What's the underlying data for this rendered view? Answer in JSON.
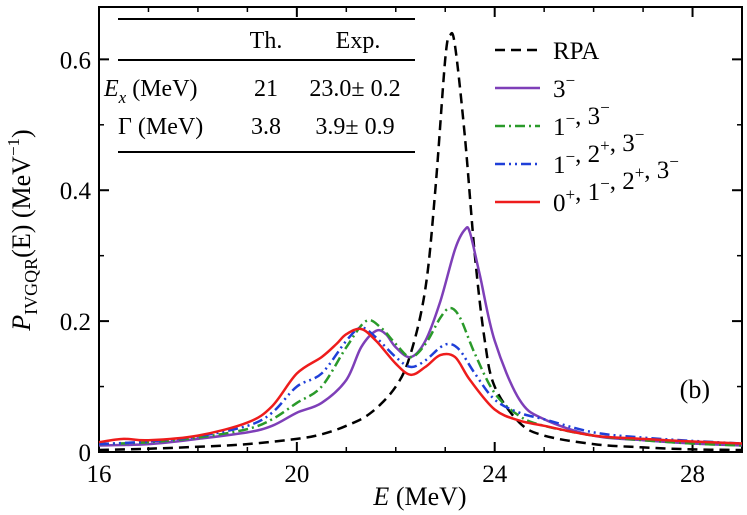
{
  "chart_data": {
    "type": "line",
    "panel_label": "(b)",
    "xlabel": {
      "italic": "E",
      "rest": " (MeV)"
    },
    "ylabel": {
      "italic": "P",
      "sub": "IVGQR",
      "mid": "(E) (MeV",
      "sup": "−1",
      "end": ")"
    },
    "xlim": [
      16,
      29
    ],
    "ylim": [
      0,
      0.68
    ],
    "xticks": [
      16,
      20,
      24,
      28
    ],
    "xtick_labels": [
      "16",
      "20",
      "24",
      "28"
    ],
    "yticks": [
      0,
      0.2,
      0.4,
      0.6
    ],
    "ytick_labels": [
      "0",
      "0.2",
      "0.4",
      "0.6"
    ],
    "legend_position": "top-right",
    "table": {
      "headers": [
        "Th.",
        "Exp."
      ],
      "rows": [
        {
          "symbol": "E",
          "sub": "x",
          "unit": " (MeV)",
          "th": "21",
          "exp": "23.0± 0.2"
        },
        {
          "symbol": "Γ",
          "sub": "",
          "unit": " (MeV)",
          "th": "3.8",
          "exp": "3.9± 0.9"
        }
      ]
    },
    "series": [
      {
        "name": "RPA",
        "legend": [
          {
            "t": "RPA"
          }
        ],
        "color": "#000000",
        "dash": "10 6",
        "x": [
          16,
          17,
          18,
          19,
          20,
          20.5,
          21,
          21.5,
          22,
          22.3,
          22.6,
          22.8,
          23.0,
          23.1,
          23.2,
          23.4,
          23.6,
          23.8,
          24,
          24.5,
          25,
          26,
          27,
          28,
          29
        ],
        "y": [
          0.003,
          0.005,
          0.008,
          0.012,
          0.02,
          0.027,
          0.04,
          0.06,
          0.1,
          0.15,
          0.25,
          0.4,
          0.6,
          0.637,
          0.62,
          0.48,
          0.3,
          0.17,
          0.1,
          0.045,
          0.025,
          0.012,
          0.007,
          0.004,
          0.003
        ]
      },
      {
        "name": "3−",
        "legend": [
          {
            "t": "3"
          },
          {
            "sup": "−"
          }
        ],
        "color": "#7e3fb8",
        "dash": "",
        "x": [
          16,
          17,
          18,
          19,
          19.5,
          20,
          20.5,
          21,
          21.3,
          21.6,
          21.8,
          22,
          22.3,
          22.6,
          22.9,
          23.2,
          23.4,
          23.5,
          23.7,
          24,
          24.5,
          25,
          26,
          27,
          28,
          29
        ],
        "y": [
          0.01,
          0.012,
          0.02,
          0.03,
          0.04,
          0.06,
          0.075,
          0.11,
          0.16,
          0.185,
          0.18,
          0.16,
          0.145,
          0.17,
          0.23,
          0.31,
          0.34,
          0.335,
          0.27,
          0.17,
          0.08,
          0.05,
          0.025,
          0.018,
          0.013,
          0.01
        ]
      },
      {
        "name": "1−, 3−",
        "legend": [
          {
            "t": "1"
          },
          {
            "sup": "−"
          },
          {
            "t": ", 3"
          },
          {
            "sup": "−"
          }
        ],
        "color": "#2a9a2a",
        "dash": "10 4 2 4",
        "x": [
          16,
          17,
          18,
          19,
          19.5,
          20,
          20.5,
          21,
          21.4,
          21.7,
          22,
          22.3,
          22.6,
          22.9,
          23.1,
          23.3,
          23.6,
          24,
          24.5,
          25,
          26,
          27,
          28,
          29
        ],
        "y": [
          0.012,
          0.015,
          0.022,
          0.035,
          0.05,
          0.075,
          0.1,
          0.16,
          0.2,
          0.19,
          0.165,
          0.145,
          0.165,
          0.205,
          0.22,
          0.205,
          0.15,
          0.09,
          0.055,
          0.04,
          0.025,
          0.018,
          0.013,
          0.01
        ]
      },
      {
        "name": "1−, 2+, 3−",
        "legend": [
          {
            "t": "1"
          },
          {
            "sup": "−"
          },
          {
            "t": ", 2"
          },
          {
            "sup": "+"
          },
          {
            "t": ", 3"
          },
          {
            "sup": "−"
          }
        ],
        "color": "#1f3fd8",
        "dash": "10 4 2 4 2 4",
        "x": [
          16,
          17,
          18,
          19,
          19.5,
          20,
          20.5,
          21,
          21.3,
          21.6,
          22,
          22.3,
          22.6,
          22.9,
          23.1,
          23.3,
          23.6,
          24,
          24.5,
          25,
          26,
          27,
          28,
          29
        ],
        "y": [
          0.012,
          0.016,
          0.024,
          0.04,
          0.06,
          0.1,
          0.12,
          0.17,
          0.19,
          0.175,
          0.145,
          0.13,
          0.14,
          0.16,
          0.165,
          0.155,
          0.12,
          0.08,
          0.06,
          0.05,
          0.03,
          0.022,
          0.017,
          0.013
        ]
      },
      {
        "name": "0+, 1−, 2+, 3−",
        "legend": [
          {
            "t": "0"
          },
          {
            "sup": "+"
          },
          {
            "t": ", 1"
          },
          {
            "sup": "−"
          },
          {
            "t": ", 2"
          },
          {
            "sup": "+"
          },
          {
            "t": ", 3"
          },
          {
            "sup": "−"
          }
        ],
        "color": "#ee1c1c",
        "dash": "",
        "x": [
          16,
          16.5,
          17,
          18,
          19,
          19.5,
          20,
          20.5,
          20.8,
          21,
          21.3,
          21.6,
          22,
          22.3,
          22.6,
          22.9,
          23.2,
          23.5,
          24,
          24.5,
          25,
          26,
          27,
          28,
          29
        ],
        "y": [
          0.015,
          0.02,
          0.018,
          0.025,
          0.045,
          0.07,
          0.12,
          0.145,
          0.165,
          0.18,
          0.188,
          0.17,
          0.135,
          0.118,
          0.13,
          0.148,
          0.145,
          0.11,
          0.065,
          0.048,
          0.04,
          0.025,
          0.02,
          0.016,
          0.013
        ]
      }
    ]
  }
}
